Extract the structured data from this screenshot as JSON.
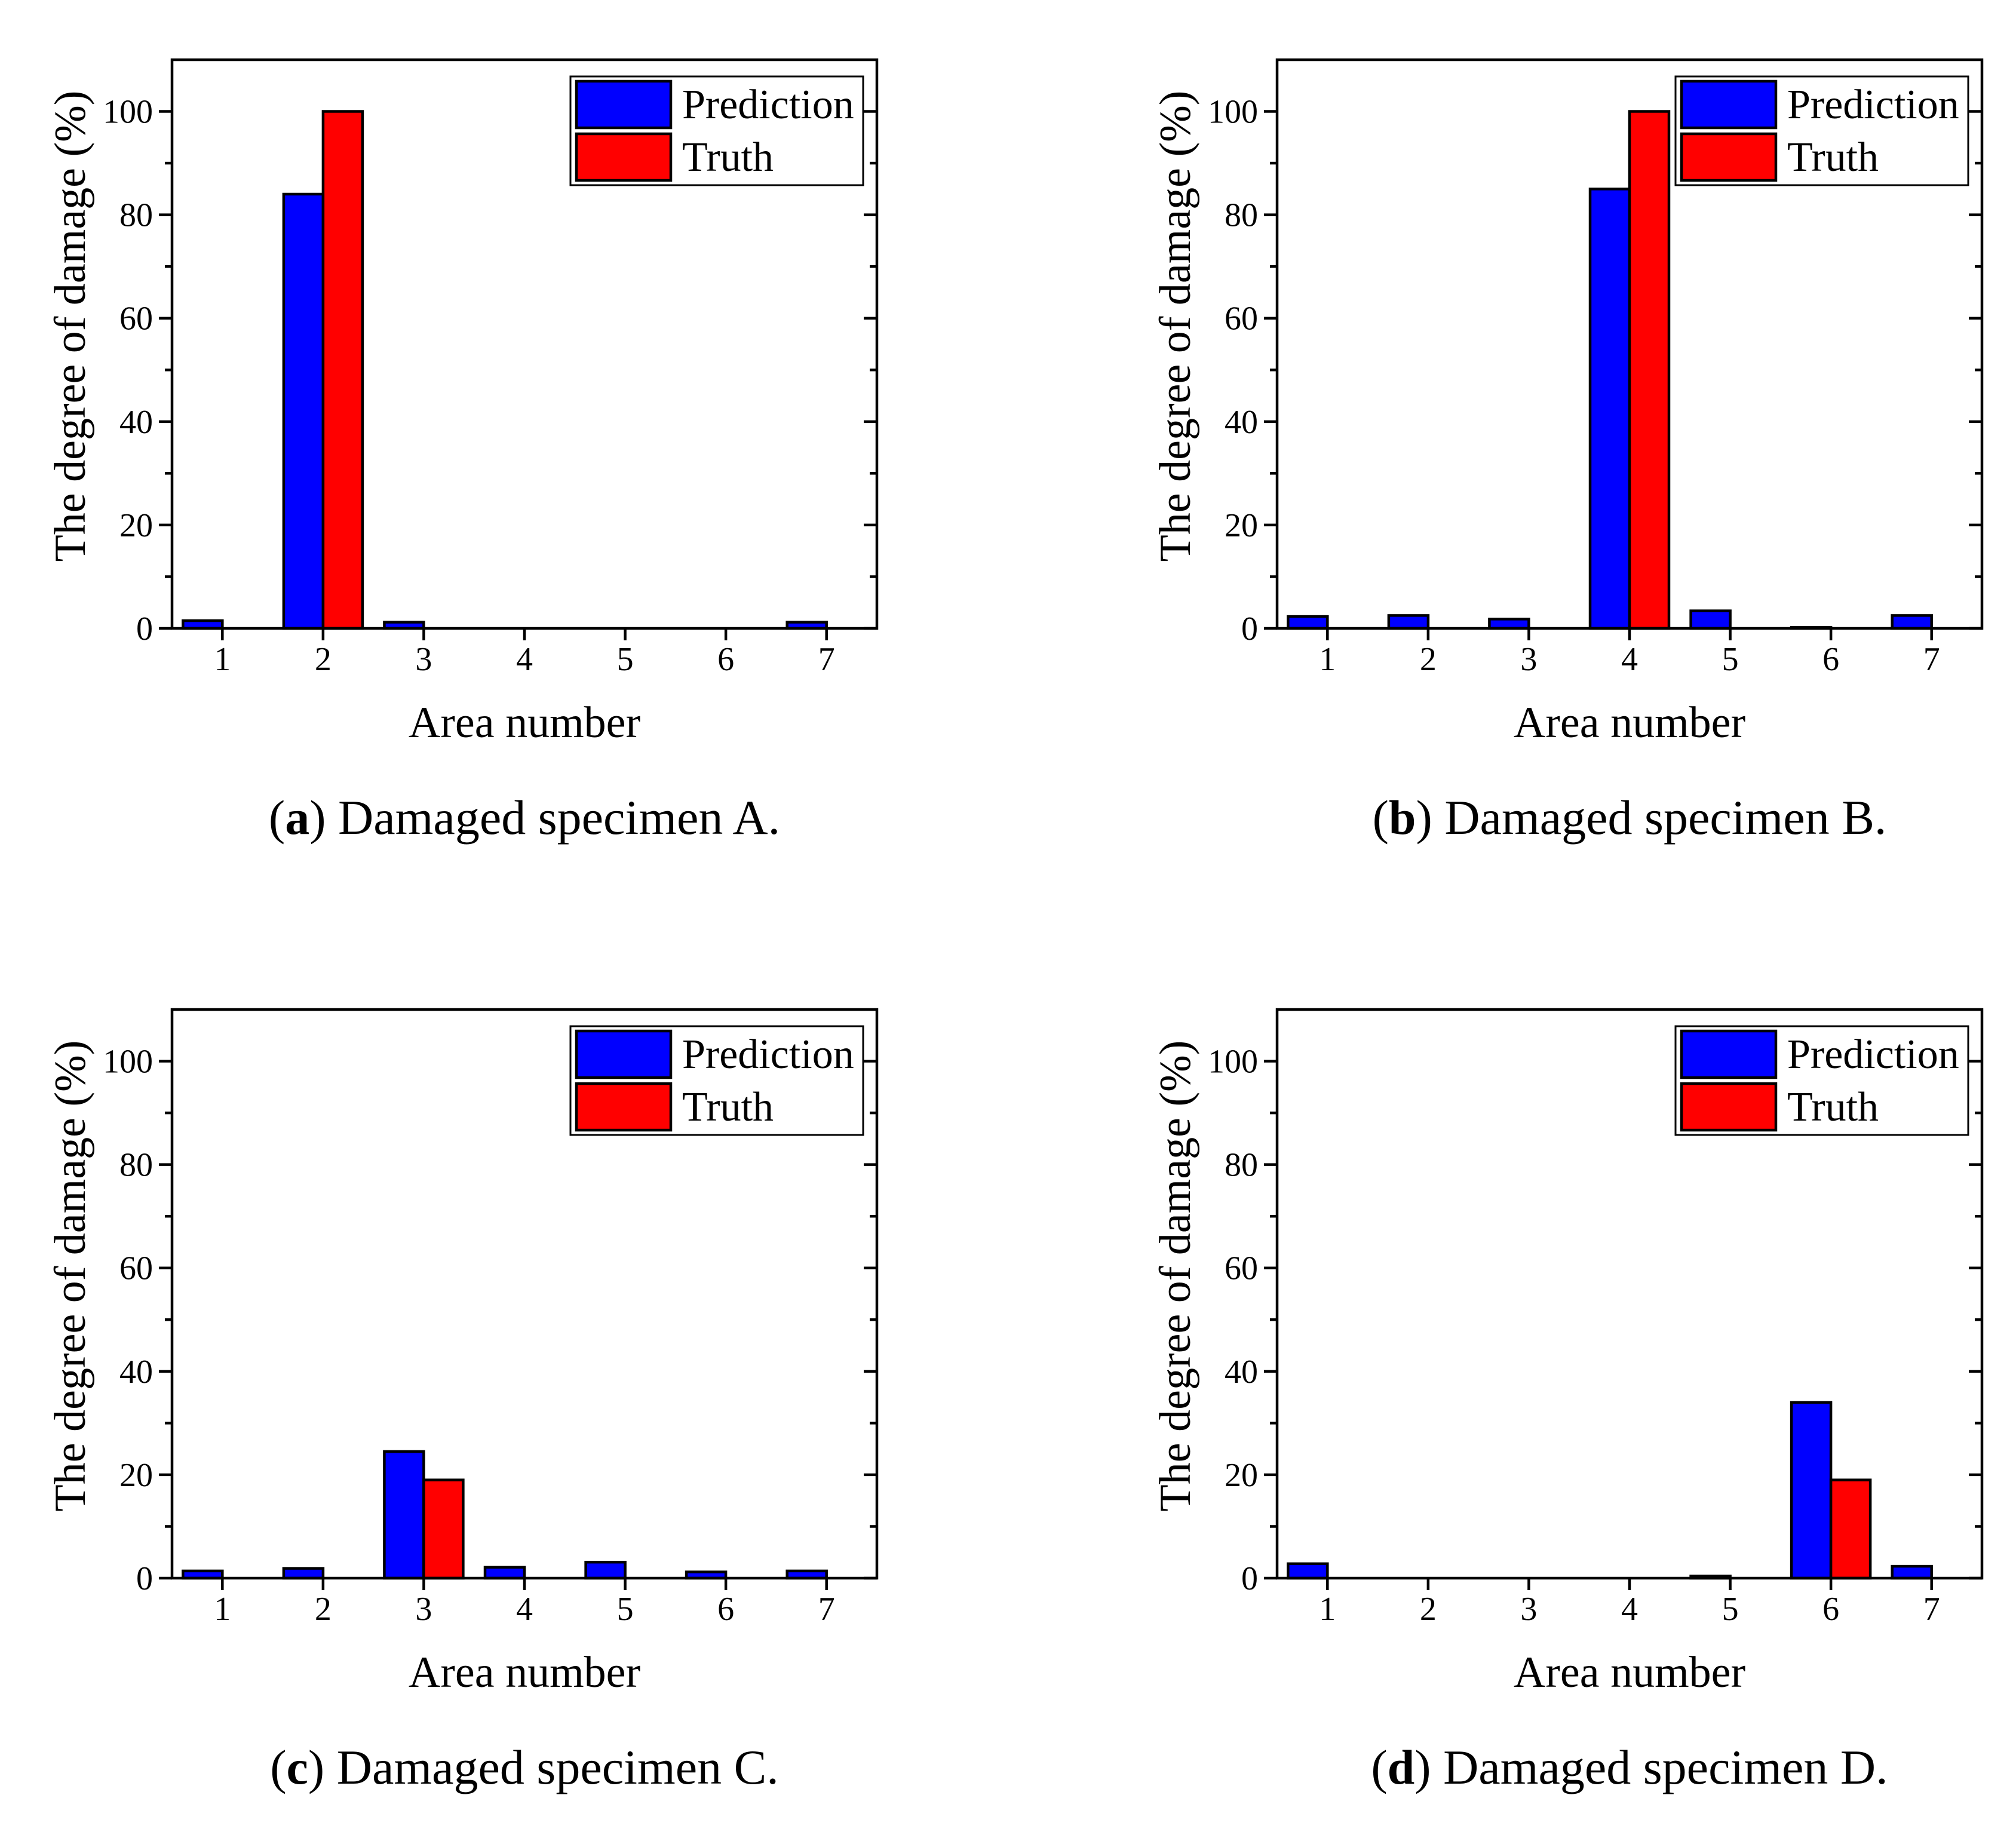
{
  "colors": {
    "prediction": "#0000ff",
    "truth": "#ff0000",
    "axis": "#000000"
  },
  "chart_data": [
    {
      "type": "bar",
      "title": "",
      "caption_letter": "a",
      "caption_paren_open": "(",
      "caption_paren_close": ")",
      "caption_text": " Damaged specimen A.",
      "xlabel": "Area number",
      "ylabel": "The degree of damage (%)",
      "ylim": [
        0,
        110
      ],
      "yticks": [
        "0",
        "20",
        "40",
        "60",
        "80",
        "100"
      ],
      "categories": [
        "1",
        "2",
        "3",
        "4",
        "5",
        "6",
        "7"
      ],
      "legend": [
        "Prediction",
        "Truth"
      ],
      "legend_position": "top-right",
      "series": [
        {
          "name": "Prediction",
          "values": [
            1.5,
            84,
            1.2,
            0,
            0,
            0,
            1.2
          ]
        },
        {
          "name": "Truth",
          "values": [
            0,
            100,
            0,
            0,
            0,
            0,
            0
          ]
        }
      ]
    },
    {
      "type": "bar",
      "title": "",
      "caption_letter": "b",
      "caption_paren_open": "(",
      "caption_paren_close": ")",
      "caption_text": " Damaged specimen B.",
      "xlabel": "Area number",
      "ylabel": "The degree of damage (%)",
      "ylim": [
        0,
        110
      ],
      "yticks": [
        "0",
        "20",
        "40",
        "60",
        "80",
        "100"
      ],
      "categories": [
        "1",
        "2",
        "3",
        "4",
        "5",
        "6",
        "7"
      ],
      "legend": [
        "Prediction",
        "Truth"
      ],
      "legend_position": "top-right",
      "series": [
        {
          "name": "Prediction",
          "values": [
            2.3,
            2.5,
            1.8,
            85,
            3.4,
            0.2,
            2.5
          ]
        },
        {
          "name": "Truth",
          "values": [
            0,
            0,
            0,
            100,
            0,
            0,
            0
          ]
        }
      ]
    },
    {
      "type": "bar",
      "title": "",
      "caption_letter": "c",
      "caption_paren_open": "(",
      "caption_paren_close": ")",
      "caption_text": " Damaged specimen C.",
      "xlabel": "Area number",
      "ylabel": "The degree of damage (%)",
      "ylim": [
        0,
        110
      ],
      "yticks": [
        "0",
        "20",
        "40",
        "60",
        "80",
        "100"
      ],
      "categories": [
        "1",
        "2",
        "3",
        "4",
        "5",
        "6",
        "7"
      ],
      "legend": [
        "Prediction",
        "Truth"
      ],
      "legend_position": "top-right",
      "series": [
        {
          "name": "Prediction",
          "values": [
            1.4,
            1.9,
            24.5,
            2.1,
            3.1,
            1.2,
            1.4
          ]
        },
        {
          "name": "Truth",
          "values": [
            0,
            0,
            19,
            0,
            0,
            0,
            0
          ]
        }
      ]
    },
    {
      "type": "bar",
      "title": "",
      "caption_letter": "d",
      "caption_paren_open": "(",
      "caption_paren_close": ")",
      "caption_text": " Damaged specimen D.",
      "xlabel": "Area number",
      "ylabel": "The degree of damage (%)",
      "ylim": [
        0,
        110
      ],
      "yticks": [
        "0",
        "20",
        "40",
        "60",
        "80",
        "100"
      ],
      "categories": [
        "1",
        "2",
        "3",
        "4",
        "5",
        "6",
        "7"
      ],
      "legend": [
        "Prediction",
        "Truth"
      ],
      "legend_position": "top-right",
      "series": [
        {
          "name": "Prediction",
          "values": [
            2.8,
            0,
            0,
            0,
            0.4,
            34,
            2.3
          ]
        },
        {
          "name": "Truth",
          "values": [
            0,
            0,
            0,
            0,
            0,
            19,
            0
          ]
        }
      ]
    }
  ]
}
